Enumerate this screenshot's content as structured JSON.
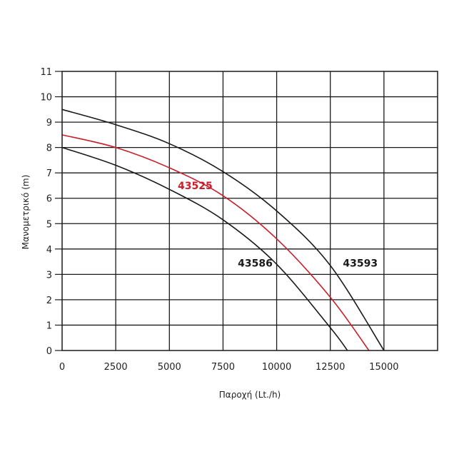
{
  "chart_data": {
    "type": "line",
    "xlabel": "Παροχή (Lt./h)",
    "ylabel": "Μανομετρικό (m)",
    "xlim": [
      0,
      17500
    ],
    "ylim": [
      0,
      11
    ],
    "x_ticks": [
      "0",
      "2500",
      "5000",
      "7500",
      "10000",
      "12500",
      "15000"
    ],
    "y_ticks": [
      "0",
      "1",
      "2",
      "3",
      "4",
      "5",
      "6",
      "7",
      "8",
      "9",
      "10",
      "11"
    ],
    "grid": true,
    "series": [
      {
        "name": "43586",
        "color": "#1a1a1a",
        "x": [
          0,
          2500,
          5000,
          7500,
          10000,
          12500,
          13300
        ],
        "y": [
          8.0,
          7.3,
          6.35,
          5.15,
          3.4,
          0.9,
          0
        ]
      },
      {
        "name": "43525",
        "color": "#c8202a",
        "x": [
          0,
          2500,
          5000,
          7500,
          10000,
          12500,
          14300
        ],
        "y": [
          8.5,
          8.0,
          7.2,
          6.1,
          4.4,
          2.1,
          0
        ]
      },
      {
        "name": "43593",
        "color": "#1a1a1a",
        "x": [
          0,
          2500,
          5000,
          7500,
          10000,
          12500,
          15000
        ],
        "y": [
          9.5,
          8.9,
          8.15,
          7.05,
          5.5,
          3.35,
          0
        ]
      }
    ]
  }
}
